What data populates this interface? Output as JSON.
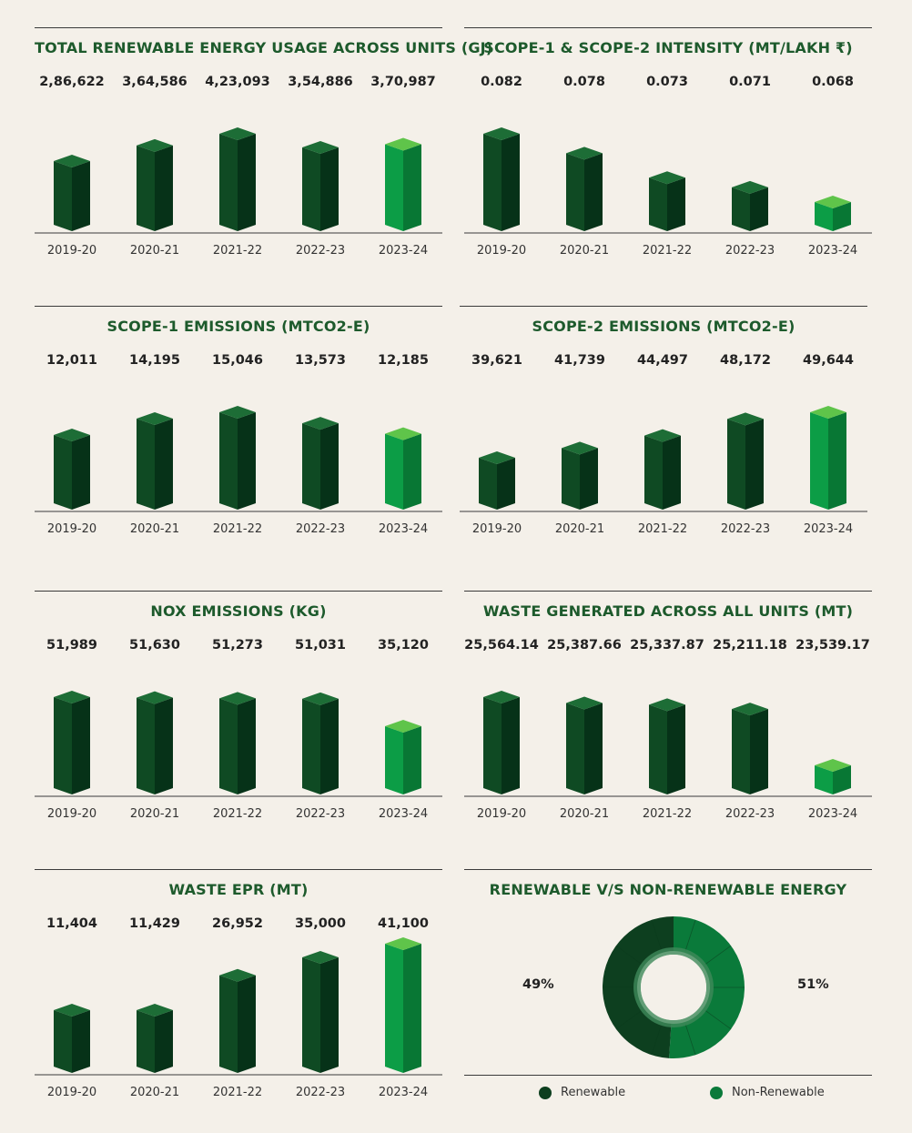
{
  "colors": {
    "background": "#f4f0e9",
    "title": "#1d5a2c",
    "bar_dark_front": "#0f4a23",
    "bar_dark_side": "#063218",
    "bar_dark_top": "#1d6d36",
    "bar_light_front": "#0c9d46",
    "bar_light_side": "#087734",
    "bar_light_top": "#5fc44a",
    "renewable": "#0d3f1f",
    "non_renewable": "#0a7a3a"
  },
  "chart_data": [
    {
      "type": "bar",
      "title": "TOTAL RENEWABLE ENERGY USAGE ACROSS UNITS (GJ)",
      "categories": [
        "2019-20",
        "2020-21",
        "2021-22",
        "2022-23",
        "2023-24"
      ],
      "values": [
        286622,
        364586,
        423093,
        354886,
        370987
      ],
      "value_labels": [
        "2,86,622",
        "3,64,586",
        "4,23,093",
        "3,54,886",
        "3,70,987"
      ],
      "highlight_last": true
    },
    {
      "type": "bar",
      "title": "SCOPE-1 & SCOPE-2 INTENSITY (MT/LAKH ₹)",
      "categories": [
        "2019-20",
        "2020-21",
        "2021-22",
        "2022-23",
        "2023-24"
      ],
      "values": [
        0.082,
        0.078,
        0.073,
        0.071,
        0.068
      ],
      "value_labels": [
        "0.082",
        "0.078",
        "0.073",
        "0.071",
        "0.068"
      ],
      "highlight_last": true
    },
    {
      "type": "bar",
      "title": "SCOPE-1 EMISSIONS (MTCO2-E)",
      "categories": [
        "2019-20",
        "2020-21",
        "2021-22",
        "2022-23",
        "2023-24"
      ],
      "values": [
        12011,
        14195,
        15046,
        13573,
        12185
      ],
      "value_labels": [
        "12,011",
        "14,195",
        "15,046",
        "13,573",
        "12,185"
      ],
      "highlight_last": true
    },
    {
      "type": "bar",
      "title": "SCOPE-2 EMISSIONS (MTCO2-E)",
      "categories": [
        "2019-20",
        "2020-21",
        "2021-22",
        "2022-23",
        "2023-24"
      ],
      "values": [
        39621,
        41739,
        44497,
        48172,
        49644
      ],
      "value_labels": [
        "39,621",
        "41,739",
        "44,497",
        "48,172",
        "49,644"
      ],
      "highlight_last": true
    },
    {
      "type": "bar",
      "title": "NOX EMISSIONS (KG)",
      "categories": [
        "2019-20",
        "2020-21",
        "2021-22",
        "2022-23",
        "2023-24"
      ],
      "values": [
        51989,
        51630,
        51273,
        51031,
        35120
      ],
      "value_labels": [
        "51,989",
        "51,630",
        "51,273",
        "51,031",
        "35,120"
      ],
      "highlight_last": true
    },
    {
      "type": "bar",
      "title": "WASTE GENERATED ACROSS ALL UNITS (MT)",
      "categories": [
        "2019-20",
        "2020-21",
        "2021-22",
        "2022-23",
        "2023-24"
      ],
      "values": [
        25564.14,
        25387.66,
        25337.87,
        25211.18,
        23539.17
      ],
      "value_labels": [
        "25,564.14",
        "25,387.66",
        "25,337.87",
        "25,211.18",
        "23,539.17"
      ],
      "highlight_last": true
    },
    {
      "type": "bar",
      "title": "WASTE EPR (MT)",
      "categories": [
        "2019-20",
        "2020-21",
        "2021-22",
        "2022-23",
        "2023-24"
      ],
      "values": [
        11404,
        11429,
        26952,
        35000,
        41100
      ],
      "value_labels": [
        "11,404",
        "11,429",
        "26,952",
        "35,000",
        "41,100"
      ],
      "highlight_last": true
    },
    {
      "type": "pie",
      "title": "RENEWABLE V/S NON-RENEWABLE ENERGY",
      "labels": [
        "Renewable",
        "Non-Renewable"
      ],
      "values": [
        49,
        51
      ],
      "value_labels": [
        "49%",
        "51%"
      ],
      "legend": "bottom"
    }
  ]
}
